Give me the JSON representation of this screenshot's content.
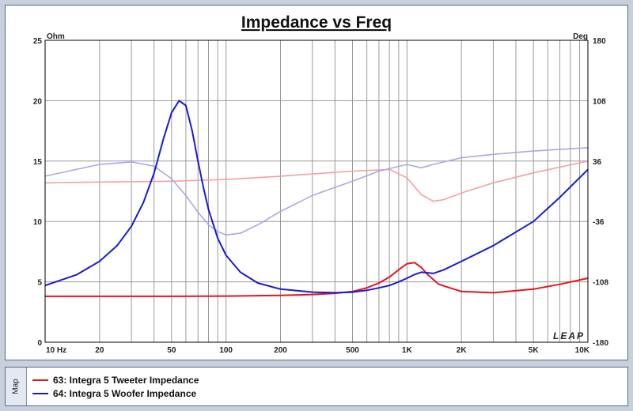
{
  "chart_data": {
    "type": "line",
    "title": "Impedance vs Freq",
    "y_left_unit": "Ohm",
    "y_right_unit": "Deg",
    "x_scale": "log",
    "xlim": [
      10,
      10000
    ],
    "ylim_left": [
      0,
      25
    ],
    "ylim_right": [
      -180,
      180
    ],
    "x_ticks": [
      {
        "value": 10,
        "label": "10  Hz"
      },
      {
        "value": 20,
        "label": "20"
      },
      {
        "value": 50,
        "label": "50"
      },
      {
        "value": 100,
        "label": "100"
      },
      {
        "value": 200,
        "label": "200"
      },
      {
        "value": 500,
        "label": "500"
      },
      {
        "value": 1000,
        "label": "1K"
      },
      {
        "value": 2000,
        "label": "2K"
      },
      {
        "value": 5000,
        "label": "5K"
      },
      {
        "value": 10000,
        "label": "10K"
      }
    ],
    "y_left_ticks": [
      0,
      5,
      10,
      15,
      20,
      25
    ],
    "y_right_ticks": [
      -180,
      -108,
      -36,
      36,
      108,
      180
    ],
    "grid": true,
    "watermark": "LEAP",
    "series": [
      {
        "name": "63: Integra 5 Tweeter Impedance",
        "axis": "left",
        "color": "#e8141a",
        "x": [
          10,
          20,
          50,
          100,
          200,
          300,
          400,
          500,
          600,
          700,
          800,
          900,
          1000,
          1100,
          1200,
          1300,
          1500,
          2000,
          3000,
          5000,
          7000,
          10000
        ],
        "y": [
          3.8,
          3.8,
          3.8,
          3.82,
          3.88,
          3.95,
          4.05,
          4.2,
          4.5,
          4.9,
          5.4,
          6.0,
          6.5,
          6.6,
          6.2,
          5.6,
          4.8,
          4.2,
          4.1,
          4.4,
          4.8,
          5.3
        ]
      },
      {
        "name": "63: Integra 5 Tweeter Impedance",
        "axis": "right",
        "color": "#f4a0a0",
        "x": [
          10,
          20,
          50,
          100,
          200,
          500,
          800,
          1000,
          1200,
          1400,
          1600,
          2000,
          3000,
          5000,
          10000
        ],
        "y": [
          10,
          11,
          12,
          14,
          18,
          24,
          26,
          16,
          -4,
          -12,
          -10,
          -2,
          10,
          22,
          36
        ]
      },
      {
        "name": "64: Integra 5 Woofer Impedance",
        "axis": "left",
        "color": "#1a1ad6",
        "x": [
          10,
          15,
          20,
          25,
          30,
          35,
          40,
          45,
          50,
          55,
          60,
          65,
          70,
          75,
          80,
          90,
          100,
          120,
          150,
          200,
          300,
          400,
          500,
          600,
          700,
          800,
          900,
          1000,
          1100,
          1200,
          1400,
          1600,
          2000,
          3000,
          5000,
          7000,
          10000
        ],
        "y": [
          4.7,
          5.6,
          6.7,
          8.0,
          9.6,
          11.6,
          14.0,
          16.8,
          19.0,
          20.0,
          19.6,
          17.5,
          15.0,
          12.8,
          11.0,
          8.6,
          7.2,
          5.8,
          4.9,
          4.4,
          4.15,
          4.1,
          4.15,
          4.3,
          4.5,
          4.7,
          5.0,
          5.3,
          5.6,
          5.8,
          5.7,
          6.0,
          6.7,
          8.0,
          10.0,
          12.0,
          14.3
        ]
      },
      {
        "name": "64: Integra 5 Woofer Impedance",
        "axis": "right",
        "color": "#a8a8ec",
        "x": [
          10,
          20,
          30,
          40,
          50,
          60,
          70,
          80,
          90,
          100,
          120,
          150,
          200,
          300,
          500,
          700,
          1000,
          1200,
          1400,
          2000,
          3000,
          5000,
          10000
        ],
        "y": [
          18,
          32,
          35,
          30,
          15,
          -5,
          -25,
          -40,
          -48,
          -52,
          -50,
          -40,
          -24,
          -5,
          12,
          24,
          32,
          28,
          32,
          40,
          44,
          48,
          52
        ]
      }
    ]
  },
  "legend": [
    {
      "label": "63: Integra 5 Tweeter Impedance",
      "color": "#e8141a"
    },
    {
      "label": "64: Integra 5 Woofer Impedance",
      "color": "#1a1ad6"
    }
  ],
  "map_tab": "Map"
}
